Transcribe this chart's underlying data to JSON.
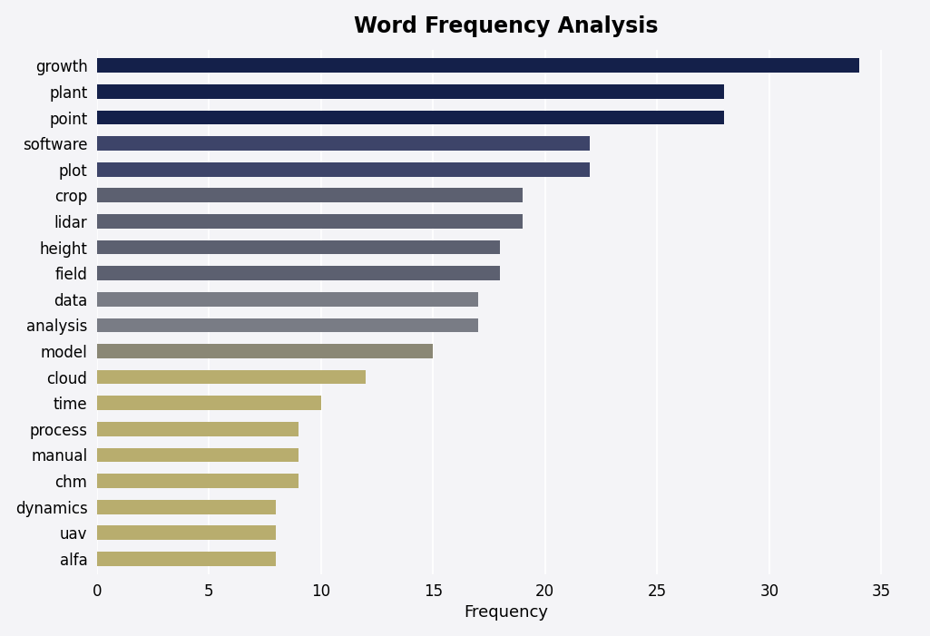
{
  "title": "Word Frequency Analysis",
  "xlabel": "Frequency",
  "categories": [
    "growth",
    "plant",
    "point",
    "software",
    "plot",
    "crop",
    "lidar",
    "height",
    "field",
    "data",
    "analysis",
    "model",
    "cloud",
    "time",
    "process",
    "manual",
    "chm",
    "dynamics",
    "uav",
    "alfa"
  ],
  "values": [
    34,
    28,
    28,
    22,
    22,
    19,
    19,
    18,
    18,
    17,
    17,
    15,
    12,
    10,
    9,
    9,
    9,
    8,
    8,
    8
  ],
  "bar_colors": [
    "#14204a",
    "#14204a",
    "#14204a",
    "#3d4469",
    "#3d4469",
    "#5c6070",
    "#5c6070",
    "#5c6070",
    "#5c6070",
    "#797c85",
    "#797c85",
    "#8a8775",
    "#b8ad6e",
    "#b8ad6e",
    "#b8ad6e",
    "#b8ad6e",
    "#b8ad6e",
    "#b8ad6e",
    "#b8ad6e",
    "#b8ad6e"
  ],
  "xlim": [
    0,
    36.5
  ],
  "xticks": [
    0,
    5,
    10,
    15,
    20,
    25,
    30,
    35
  ],
  "background_color": "#f4f4f7",
  "title_fontsize": 17,
  "label_fontsize": 12,
  "xlabel_fontsize": 13,
  "bar_height": 0.55
}
